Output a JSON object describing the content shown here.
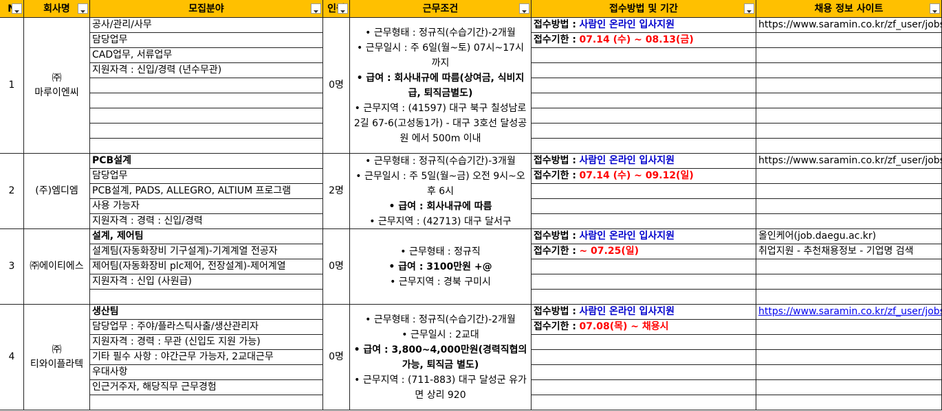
{
  "header": [
    "N",
    "회사명",
    "모집분야",
    "인원",
    "근무조건",
    "접수방법 및 기간",
    "채용 정보 사이트"
  ],
  "rows": [
    {
      "no": "1",
      "company": [
        "㈜",
        "마루이엔씨"
      ],
      "positions": [
        "공사/관리/사무",
        "담당업무",
        "CAD업무, 서류업무",
        "지원자격 : 신입/경력 (년수무관)"
      ],
      "count": "0명",
      "conditions": [
        {
          "text": "• 근무형태 : 정규직(수습기간)-2개월"
        },
        {
          "text": "• 근무일시 : 주 6일(월~토) 07시~17시 까지"
        },
        {
          "text": "• 급여 : 회사내규에 따름(상여금, 식비지급, 퇴직금별도)",
          "bold": true
        },
        {
          "text": "• 근무지역 : (41597) 대구 북구 칠성남로2길 67-6(고성동1가) - 대구 3호선 달성공원 에서 500m 이내"
        }
      ],
      "method": {
        "label": "접수방법 :",
        "value": "사람인 온라인 입사지원"
      },
      "deadline": {
        "label": "접수기한 :",
        "value": "07.14 (수) ~ 08.13(금)"
      },
      "site": [
        "https://www.saramin.co.kr/zf_user/jobs/"
      ]
    },
    {
      "no": "2",
      "company": [
        "(주)엠디엠"
      ],
      "positions": [
        "PCB설계",
        "담당업무",
        "PCB설계, PADS, ALLEGRO, ALTIUM 프로그램",
        "사용 가능자",
        "지원자격 : 경력 : 신입/경력"
      ],
      "count": "2명",
      "conditions": [
        {
          "text": "• 근무형태 : 정규직(수습기간)-3개월"
        },
        {
          "text": "• 근무일시 : 주 5일(월~금) 오전 9시~오후 6시"
        },
        {
          "text": "• 급여 : 회사내규에 따름",
          "bold": true
        },
        {
          "text": "• 근무지역 : (42713) 대구 달서구"
        }
      ],
      "method": {
        "label": "접수방법 :",
        "value": "사람인 온라인 입사지원"
      },
      "deadline": {
        "label": "접수기한 :",
        "value": "07.14 (수) ~ 09.12(일)"
      },
      "site": [
        "https://www.saramin.co.kr/zf_user/jobs/"
      ]
    },
    {
      "no": "3",
      "company": [
        "㈜에이티에스"
      ],
      "positions": [
        "설계, 제어팀",
        "설계팀(자동화장비 기구설계)-기계계열 전공자",
        "제어팀(자동화장비 plc제어, 전장설계)-제어계열",
        "지원자격 : 신입 (사원급)"
      ],
      "count": "0명",
      "conditions": [
        {
          "text": "• 근무형태 : 정규직"
        },
        {
          "text": "• 급여 : 3100만원 +@",
          "bold": true
        },
        {
          "text": "• 근무지역 : 경북 구미시"
        }
      ],
      "method": {
        "label": "접수방법 :",
        "value": "사람인 온라인 입사지원"
      },
      "deadline": {
        "label": "접수기한 :",
        "value": "~ 07.25(일)"
      },
      "site": [
        "올인케어(job.daegu.ac.kr)",
        "취업지원 - 추천채용정보 - 기업명 검색"
      ]
    },
    {
      "no": "4",
      "company": [
        "㈜",
        "티와이플라텍"
      ],
      "positions": [
        "생산팀",
        "담당업무 : 주야/플라스틱사출/생산관리자",
        "지원자격 : 경력 : 무관 (신입도 지원 가능)",
        "기타 필수 사항 : 야간근무 가능자, 2교대근무",
        "우대사항",
        "인근거주자, 해당직무 근무경험"
      ],
      "count": "0명",
      "conditions": [
        {
          "text": "• 근무형태 : 정규직(수습기간)-2개월"
        },
        {
          "text": "• 근무일시 : 2교대"
        },
        {
          "text": "• 급여 : 3,800~4,000만원(경력직협의가능, 퇴직금 별도)",
          "bold": true
        },
        {
          "text": "• 근무지역 : (711-883) 대구 달성군 유가면 상리 920"
        }
      ],
      "method": {
        "label": "접수방법 :",
        "value": "사람인 온라인 입사지원"
      },
      "deadline": {
        "label": "접수기한 :",
        "value": "07.08(목) ~ 채용시"
      },
      "site": [
        "https://www.saramin.co.kr/zf_user/jobs/"
      ]
    }
  ]
}
